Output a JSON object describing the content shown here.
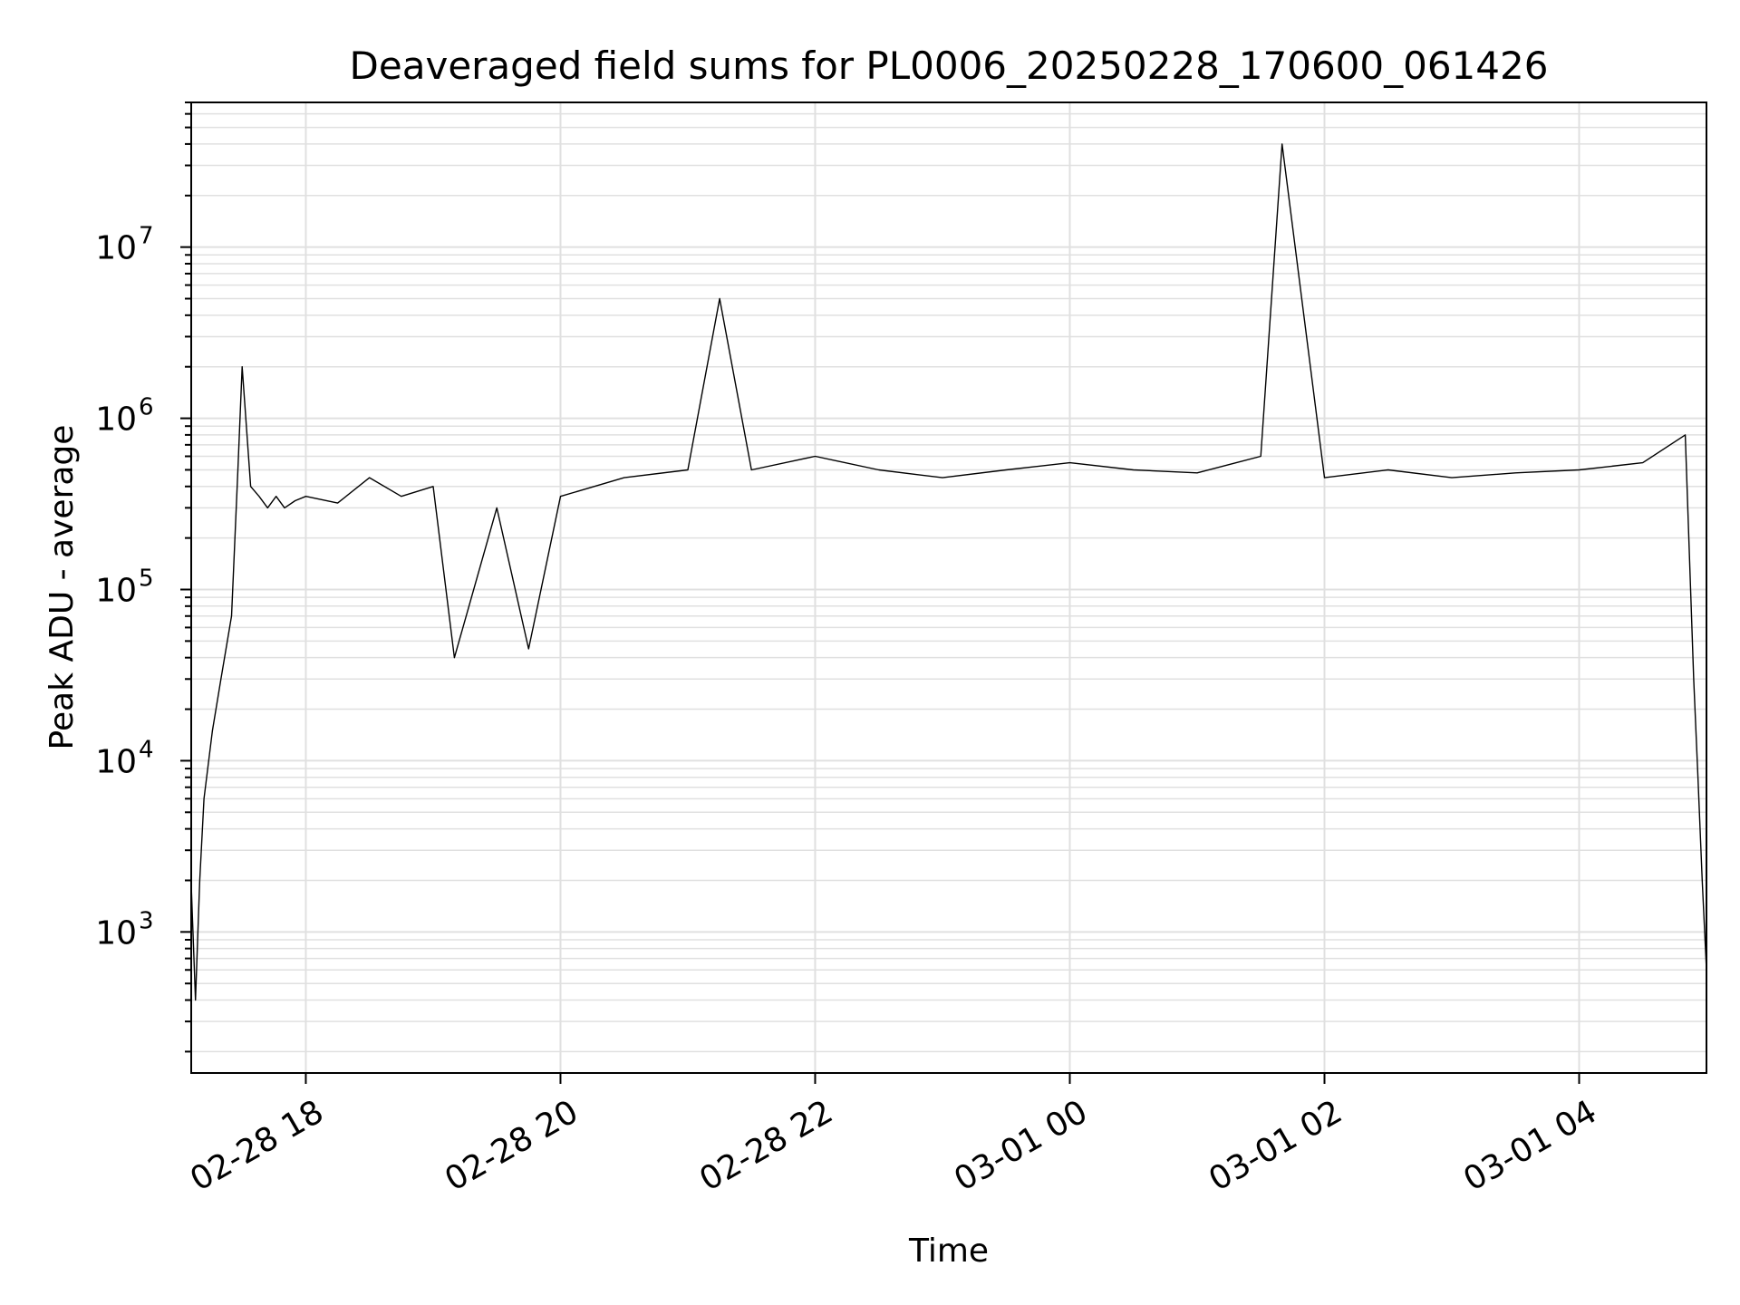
{
  "chart_data": {
    "type": "line",
    "title": "Deaveraged field sums for PL0006_20250228_170600_061426",
    "xlabel": "Time",
    "ylabel": "Peak ADU - average",
    "yscale": "log",
    "ylim": [
      150,
      70000000
    ],
    "xlim": [
      "02-28 17:06",
      "03-01 05:00"
    ],
    "grid": true,
    "x_tick_labels": [
      "02-28 18",
      "02-28 20",
      "02-28 22",
      "03-01 00",
      "03-01 02",
      "03-01 04"
    ],
    "y_tick_labels": [
      {
        "base": "10",
        "exp": "3"
      },
      {
        "base": "10",
        "exp": "4"
      },
      {
        "base": "10",
        "exp": "5"
      },
      {
        "base": "10",
        "exp": "6"
      },
      {
        "base": "10",
        "exp": "7"
      }
    ],
    "series": [
      {
        "color": "#000000",
        "x": [
          "02-28 17:06",
          "02-28 17:08",
          "02-28 17:10",
          "02-28 17:12",
          "02-28 17:16",
          "02-28 17:20",
          "02-28 17:25",
          "02-28 17:28",
          "02-28 17:30",
          "02-28 17:34",
          "02-28 17:38",
          "02-28 17:42",
          "02-28 17:46",
          "02-28 17:50",
          "02-28 17:55",
          "02-28 18:00",
          "02-28 18:15",
          "02-28 18:30",
          "02-28 18:45",
          "02-28 19:00",
          "02-28 19:10",
          "02-28 19:30",
          "02-28 19:45",
          "02-28 20:00",
          "02-28 20:30",
          "02-28 21:00",
          "02-28 21:15",
          "02-28 21:30",
          "02-28 22:00",
          "02-28 22:30",
          "02-28 23:00",
          "02-28 23:30",
          "03-01 00:00",
          "03-01 00:30",
          "03-01 01:00",
          "03-01 01:30",
          "03-01 01:40",
          "03-01 02:00",
          "03-01 02:30",
          "03-01 03:00",
          "03-01 03:30",
          "03-01 04:00",
          "03-01 04:30",
          "03-01 04:50",
          "03-01 04:54",
          "03-01 04:56",
          "03-01 04:58",
          "03-01 05:00"
        ],
        "y": [
          1900,
          400,
          2000,
          6000,
          15000,
          30000,
          70000,
          500000,
          2000000,
          400000,
          350000,
          300000,
          350000,
          300000,
          330000,
          350000,
          320000,
          450000,
          350000,
          400000,
          40000,
          300000,
          45000,
          350000,
          450000,
          500000,
          5000000,
          500000,
          600000,
          500000,
          450000,
          500000,
          550000,
          500000,
          480000,
          600000,
          40000000,
          450000,
          500000,
          450000,
          480000,
          500000,
          550000,
          800000,
          30000,
          8000,
          2000,
          600
        ]
      }
    ]
  }
}
